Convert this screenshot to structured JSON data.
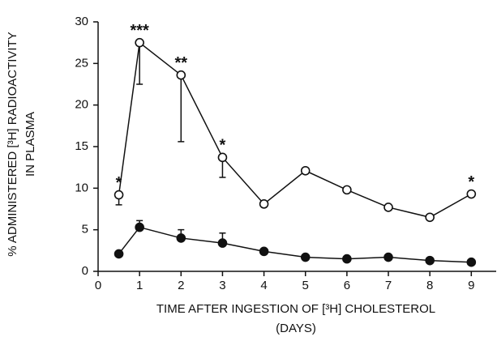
{
  "chart_data": {
    "type": "line",
    "ylabel": [
      "% ADMINISTERED [³H] RADIOACTIVITY",
      "IN PLASMA"
    ],
    "xlabel": [
      "TIME AFTER INGESTION OF [³H] CHOLESTEROL",
      "(DAYS)"
    ],
    "x": [
      0.5,
      1,
      2,
      3,
      4,
      5,
      6,
      7,
      8,
      9
    ],
    "series": [
      {
        "color": "#111111",
        "marker_fill": "open",
        "error_direction": "down",
        "values": [
          9.2,
          27.5,
          23.6,
          13.7,
          8.1,
          12.1,
          9.8,
          7.7,
          6.5,
          9.3
        ],
        "errors": [
          1.2,
          5,
          8,
          2.4,
          null,
          null,
          null,
          null,
          null,
          null
        ]
      },
      {
        "color": "#111111",
        "marker_fill": "filled",
        "error_direction": "up",
        "values": [
          2.1,
          5.3,
          4.0,
          3.4,
          2.4,
          1.7,
          1.5,
          1.7,
          1.3,
          1.1
        ],
        "errors": [
          null,
          0.8,
          1.0,
          1.2,
          null,
          null,
          null,
          null,
          null,
          null
        ]
      }
    ],
    "annotations": [
      {
        "x": 0.5,
        "text": "*"
      },
      {
        "x": 1,
        "text": "***"
      },
      {
        "x": 2,
        "text": "**"
      },
      {
        "x": 3,
        "text": "*"
      },
      {
        "x": 9,
        "text": "*"
      }
    ],
    "xlim": [
      0,
      9.6
    ],
    "xticks": [
      0,
      1,
      2,
      3,
      4,
      5,
      6,
      7,
      8,
      9
    ],
    "ylim": [
      0,
      30
    ],
    "yticks": [
      0,
      5,
      10,
      15,
      20,
      25,
      30
    ]
  }
}
